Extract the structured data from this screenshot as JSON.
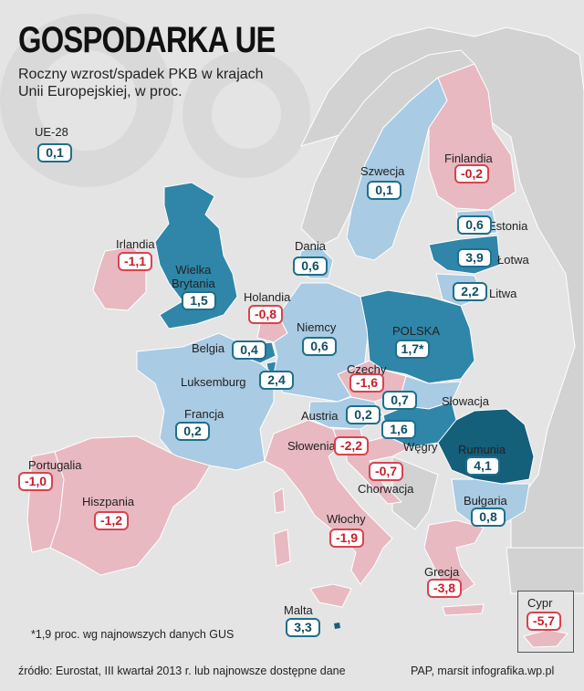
{
  "title": "GOSPODARKA UE",
  "subtitle": [
    "Roczny wzrost/spadek PKB w krajach",
    "Unii Europejskiej, w proc."
  ],
  "colors": {
    "background": "#e4e4e4",
    "non_eu_land": "#d2d2d2",
    "growth_light": "#a9cbe3",
    "growth_medium": "#2f86a8",
    "growth_dark": "#145f7a",
    "decline": "#e8b9c1",
    "positive_border": "#1f6f8b",
    "negative_border": "#d9434e"
  },
  "countries": [
    {
      "key": "eu28",
      "name": "UE-28",
      "value": "0,1",
      "sign": "pos"
    },
    {
      "key": "szwecja",
      "name": "Szwecja",
      "value": "0,1",
      "sign": "pos"
    },
    {
      "key": "finlandia",
      "name": "Finlandia",
      "value": "-0,2",
      "sign": "neg"
    },
    {
      "key": "estonia",
      "name": "Estonia",
      "value": "0,6",
      "sign": "pos"
    },
    {
      "key": "lotwa",
      "name": "Łotwa",
      "value": "3,9",
      "sign": "pos"
    },
    {
      "key": "litwa",
      "name": "Litwa",
      "value": "2,2",
      "sign": "pos"
    },
    {
      "key": "irlandia",
      "name": "Irlandia",
      "value": "-1,1",
      "sign": "neg"
    },
    {
      "key": "dania",
      "name": "Dania",
      "value": "0,6",
      "sign": "pos"
    },
    {
      "key": "wielka_brytania",
      "name": "Wielka\nBrytania",
      "value": "1,5",
      "sign": "pos"
    },
    {
      "key": "holandia",
      "name": "Holandia",
      "value": "-0,8",
      "sign": "neg"
    },
    {
      "key": "niemcy",
      "name": "Niemcy",
      "value": "0,6",
      "sign": "pos"
    },
    {
      "key": "polska",
      "name": "POLSKA",
      "value": "1,7*",
      "sign": "pos"
    },
    {
      "key": "belgia",
      "name": "Belgia",
      "value": "0,4",
      "sign": "pos"
    },
    {
      "key": "luksemburg",
      "name": "Luksemburg",
      "value": "2,4",
      "sign": "pos"
    },
    {
      "key": "czechy",
      "name": "Czechy",
      "value": "-1,6",
      "sign": "neg"
    },
    {
      "key": "slowacja",
      "name": "Słowacja",
      "value": "0,7",
      "sign": "pos"
    },
    {
      "key": "francja",
      "name": "Francja",
      "value": "0,2",
      "sign": "pos"
    },
    {
      "key": "austria",
      "name": "Austria",
      "value": "0,2",
      "sign": "pos"
    },
    {
      "key": "wegry",
      "name": "Węgry",
      "value": "1,6",
      "sign": "pos"
    },
    {
      "key": "slowenia",
      "name": "Słowenia",
      "value": "-2,2",
      "sign": "neg"
    },
    {
      "key": "rumunia",
      "name": "Rumunia",
      "value": "4,1",
      "sign": "pos"
    },
    {
      "key": "chorwacja",
      "name": "Chorwacja",
      "value": "-0,7",
      "sign": "neg"
    },
    {
      "key": "portugalia",
      "name": "Portugalia",
      "value": "-1,0",
      "sign": "neg"
    },
    {
      "key": "hiszpania",
      "name": "Hiszpania",
      "value": "-1,2",
      "sign": "neg"
    },
    {
      "key": "bulgaria",
      "name": "Bułgaria",
      "value": "0,8",
      "sign": "pos"
    },
    {
      "key": "wlochy",
      "name": "Włochy",
      "value": "-1,9",
      "sign": "neg"
    },
    {
      "key": "grecja",
      "name": "Grecja",
      "value": "-3,8",
      "sign": "neg"
    },
    {
      "key": "malta",
      "name": "Malta",
      "value": "3,3",
      "sign": "pos"
    },
    {
      "key": "cypr",
      "name": "Cypr",
      "value": "-5,7",
      "sign": "neg"
    }
  ],
  "footnote": "*1,9 proc. wg najnowszych danych GUS",
  "source": "źródło: Eurostat, III kwartał 2013 r. lub najnowsze dostępne dane",
  "credit": "PAP, marsit infografika.wp.pl"
}
